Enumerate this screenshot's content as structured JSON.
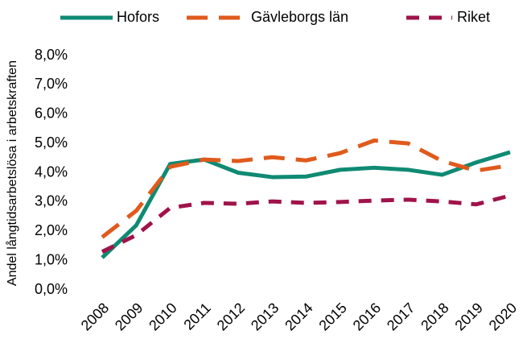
{
  "chart_data": {
    "type": "line",
    "y_label": "Andel långtidsarbetslösa i arbetskraften",
    "categories": [
      "2008",
      "2009",
      "2010",
      "2011",
      "2012",
      "2013",
      "2014",
      "2015",
      "2016",
      "2017",
      "2018",
      "2019",
      "2020"
    ],
    "series": [
      {
        "name": "Hofors",
        "color": "#0f8a73",
        "dash": "solid",
        "values": [
          1.1,
          2.2,
          4.3,
          4.45,
          4.0,
          3.85,
          3.87,
          4.1,
          4.17,
          4.1,
          3.93,
          4.35,
          4.7
        ]
      },
      {
        "name": "Gävleborgs län",
        "color": "#e05a1c",
        "dash": "long",
        "values": [
          1.8,
          2.7,
          4.2,
          4.45,
          4.4,
          4.53,
          4.42,
          4.67,
          5.1,
          5.0,
          4.4,
          4.07,
          4.25
        ]
      },
      {
        "name": "Riket",
        "color": "#a0134a",
        "dash": "short",
        "values": [
          1.3,
          1.87,
          2.8,
          2.97,
          2.94,
          3.02,
          2.97,
          3.0,
          3.05,
          3.08,
          3.02,
          2.92,
          3.22
        ]
      }
    ],
    "ylim": [
      0,
      8
    ],
    "yticks": [
      {
        "value": 0,
        "label": "0,0%"
      },
      {
        "value": 1,
        "label": "1,0%"
      },
      {
        "value": 2,
        "label": "2,0%"
      },
      {
        "value": 3,
        "label": "3,0%"
      },
      {
        "value": 4,
        "label": "4,0%"
      },
      {
        "value": 5,
        "label": "5,0%"
      },
      {
        "value": 6,
        "label": "6,0%"
      },
      {
        "value": 7,
        "label": "7,0%"
      },
      {
        "value": 8,
        "label": "8,0%"
      }
    ],
    "grid": false,
    "legend": "top"
  }
}
